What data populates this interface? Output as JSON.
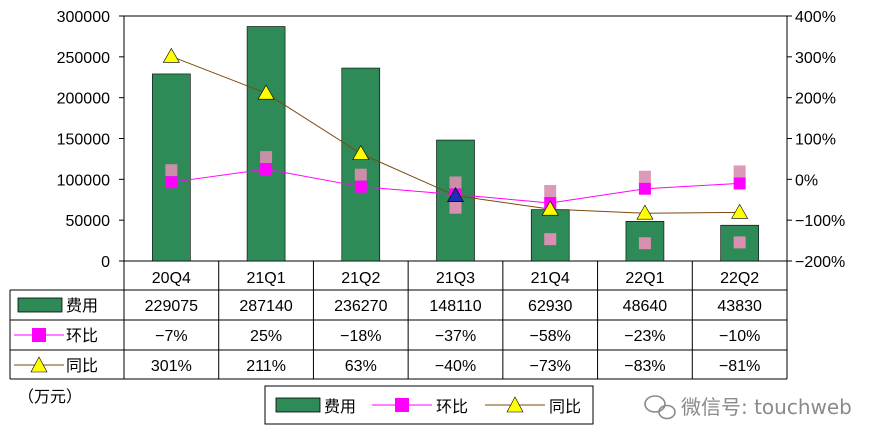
{
  "chart_data": {
    "type": "bar",
    "categories": [
      "20Q4",
      "21Q1",
      "21Q2",
      "21Q3",
      "21Q4",
      "22Q1",
      "22Q2"
    ],
    "series": [
      {
        "name": "费用",
        "kind": "bar",
        "axis": "left",
        "values": [
          229075,
          287140,
          236270,
          148110,
          62930,
          48640,
          43830
        ],
        "labels": [
          "229075",
          "287140",
          "236270",
          "148110",
          "62930",
          "48640",
          "43830"
        ]
      },
      {
        "name": "环比",
        "kind": "line",
        "axis": "right",
        "values": [
          -7,
          25,
          -18,
          -37,
          -58,
          -23,
          -10
        ],
        "labels": [
          "−7%",
          "25%",
          "−18%",
          "−37%",
          "−58%",
          "−23%",
          "−10%"
        ]
      },
      {
        "name": "同比",
        "kind": "line",
        "axis": "right",
        "values": [
          301,
          211,
          63,
          -40,
          -73,
          -83,
          -81
        ],
        "labels": [
          "301%",
          "211%",
          "63%",
          "−40%",
          "−73%",
          "−83%",
          "−81%"
        ]
      }
    ],
    "ylim_left": [
      0,
      300000
    ],
    "yticks_left": [
      "0",
      "50000",
      "100000",
      "150000",
      "200000",
      "250000",
      "300000"
    ],
    "ylim_right": [
      -200,
      400
    ],
    "yticks_right": [
      "−200%",
      "−100%",
      "0%",
      "100%",
      "200%",
      "300%",
      "400%"
    ],
    "ylabel_left": "（万元）",
    "legend_position": "bottom",
    "colors": {
      "bar": "#2e8b57",
      "line_mom": "#ff00ff",
      "line_yoy": "#7a4a10",
      "marker_yoy": "#ffff00"
    }
  },
  "watermark": "微信号: touchweb"
}
